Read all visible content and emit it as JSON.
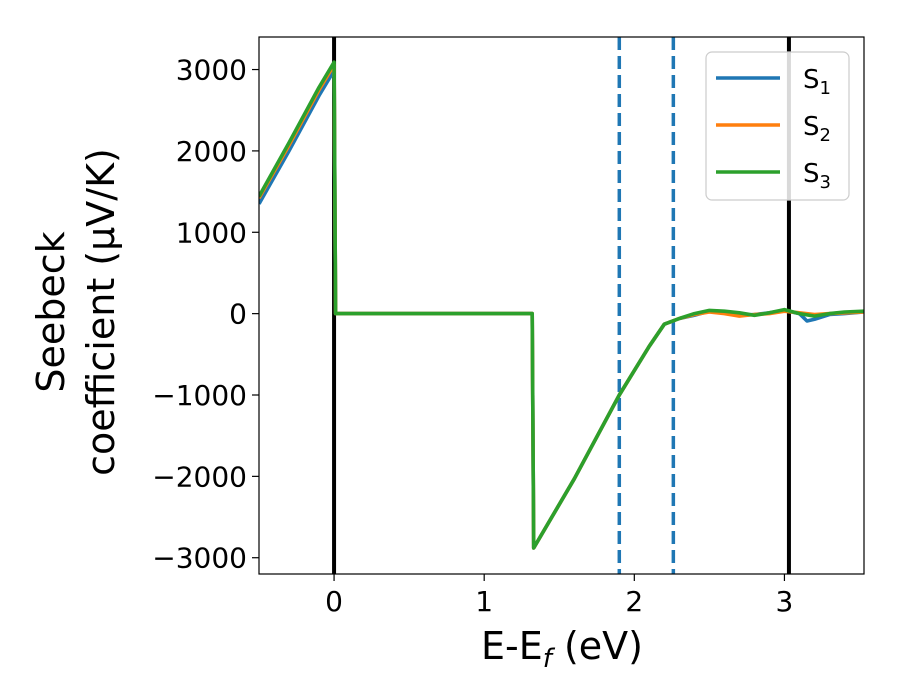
{
  "chart_data": {
    "type": "line",
    "xlabel": {
      "main": "E-E",
      "sub": "f",
      "suffix": " (eV)"
    },
    "ylabel": {
      "line1": "Seebeck",
      "line2": "coefficient  (μV/K)"
    },
    "xlim": [
      -0.5,
      3.53
    ],
    "ylim": [
      -3200,
      3400
    ],
    "xticks": [
      0,
      1,
      2,
      3
    ],
    "yticks": [
      3000,
      2000,
      1000,
      0,
      -1000,
      -2000,
      -3000
    ],
    "xtick_labels": [
      "0",
      "1",
      "2",
      "3"
    ],
    "ytick_labels": [
      "3000",
      "2000",
      "1000",
      "0",
      "−1000",
      "−2000",
      "−3000"
    ],
    "grid": false,
    "legend_position": "top-right",
    "vlines": [
      {
        "x": 0.0,
        "style": "solid",
        "color": "#000000"
      },
      {
        "x": 3.03,
        "style": "solid",
        "color": "#000000"
      },
      {
        "x": 1.9,
        "style": "dashed",
        "color": "#1f77b4"
      },
      {
        "x": 2.26,
        "style": "dashed",
        "color": "#1f77b4"
      }
    ],
    "series": [
      {
        "name": "S",
        "sub": "1",
        "color": "#1f77b4",
        "points": [
          [
            -0.5,
            1350
          ],
          [
            -0.3,
            2000
          ],
          [
            -0.1,
            2680
          ],
          [
            0.0,
            2990
          ],
          [
            0.01,
            0
          ],
          [
            1.32,
            0
          ],
          [
            1.33,
            -2880
          ],
          [
            1.6,
            -2030
          ],
          [
            1.9,
            -1000
          ],
          [
            2.1,
            -400
          ],
          [
            2.2,
            -130
          ],
          [
            2.3,
            -60
          ],
          [
            2.4,
            -20
          ],
          [
            2.5,
            30
          ],
          [
            2.6,
            10
          ],
          [
            2.7,
            -20
          ],
          [
            2.8,
            -10
          ],
          [
            2.9,
            10
          ],
          [
            3.0,
            40
          ],
          [
            3.1,
            0
          ],
          [
            3.15,
            -90
          ],
          [
            3.2,
            -70
          ],
          [
            3.3,
            -10
          ],
          [
            3.4,
            0
          ],
          [
            3.53,
            20
          ]
        ]
      },
      {
        "name": "S",
        "sub": "2",
        "color": "#ff7f0e",
        "points": [
          [
            -0.5,
            1420
          ],
          [
            -0.3,
            2070
          ],
          [
            -0.1,
            2750
          ],
          [
            0.0,
            3060
          ],
          [
            0.01,
            0
          ],
          [
            1.32,
            0
          ],
          [
            1.33,
            -2880
          ],
          [
            1.6,
            -2030
          ],
          [
            1.9,
            -1000
          ],
          [
            2.1,
            -400
          ],
          [
            2.2,
            -130
          ],
          [
            2.3,
            -60
          ],
          [
            2.4,
            -10
          ],
          [
            2.5,
            20
          ],
          [
            2.6,
            0
          ],
          [
            2.7,
            -30
          ],
          [
            2.8,
            -10
          ],
          [
            2.9,
            0
          ],
          [
            3.0,
            30
          ],
          [
            3.1,
            10
          ],
          [
            3.2,
            -10
          ],
          [
            3.3,
            0
          ],
          [
            3.4,
            10
          ],
          [
            3.53,
            20
          ]
        ]
      },
      {
        "name": "S",
        "sub": "3",
        "color": "#2ca02c",
        "points": [
          [
            -0.5,
            1440
          ],
          [
            -0.3,
            2100
          ],
          [
            -0.1,
            2780
          ],
          [
            0.0,
            3090
          ],
          [
            0.01,
            0
          ],
          [
            1.32,
            0
          ],
          [
            1.33,
            -2880
          ],
          [
            1.6,
            -2030
          ],
          [
            1.9,
            -1000
          ],
          [
            2.1,
            -400
          ],
          [
            2.2,
            -130
          ],
          [
            2.3,
            -60
          ],
          [
            2.4,
            0
          ],
          [
            2.5,
            40
          ],
          [
            2.6,
            30
          ],
          [
            2.7,
            10
          ],
          [
            2.8,
            -20
          ],
          [
            2.9,
            10
          ],
          [
            3.0,
            50
          ],
          [
            3.1,
            0
          ],
          [
            3.2,
            -30
          ],
          [
            3.3,
            0
          ],
          [
            3.4,
            20
          ],
          [
            3.53,
            30
          ]
        ]
      }
    ]
  }
}
